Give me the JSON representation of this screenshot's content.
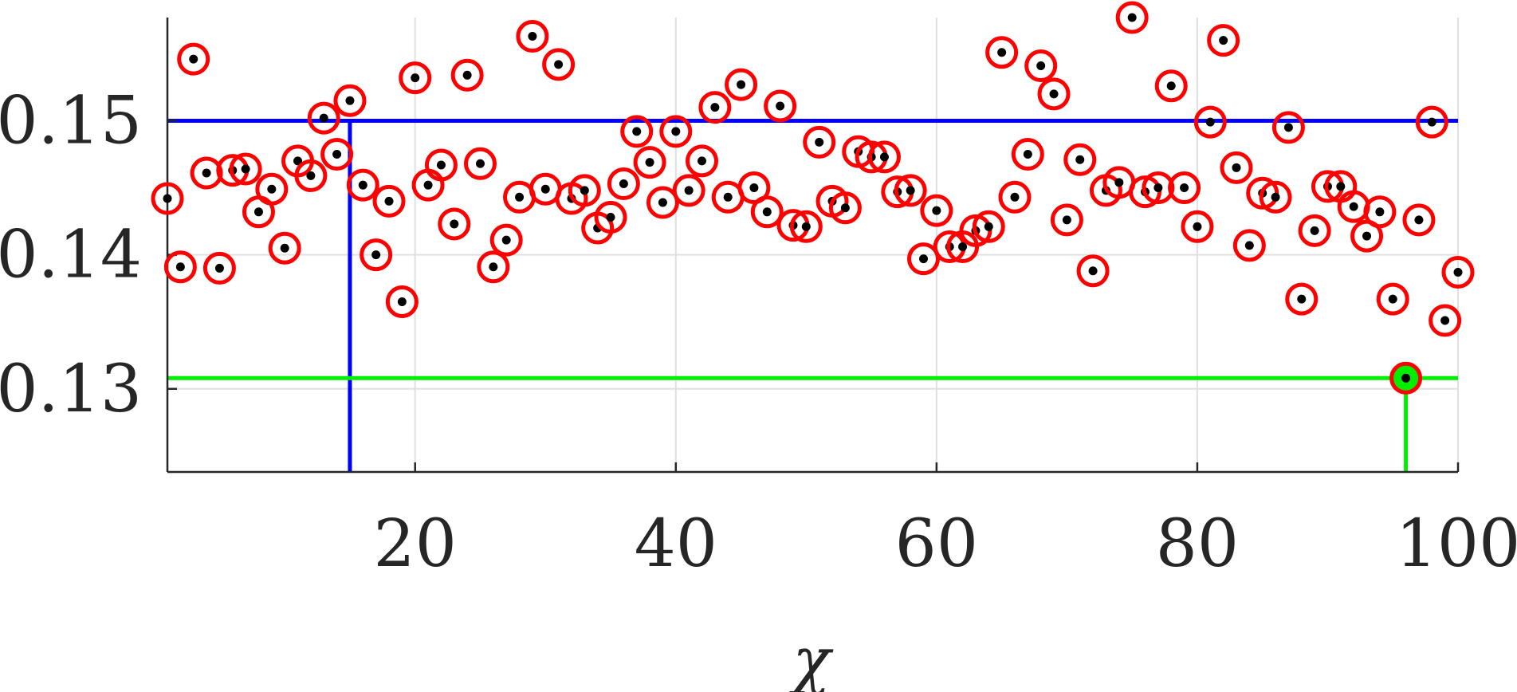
{
  "chart_data": {
    "type": "scatter",
    "title": "",
    "xlabel": "χ",
    "ylabel": "",
    "xlim": [
      1,
      100
    ],
    "ylim": [
      0.1238,
      0.1577
    ],
    "xticks": [
      20,
      40,
      60,
      80,
      100
    ],
    "yticks": [
      0.13,
      0.14,
      0.15
    ],
    "xtick_labels": [
      "20",
      "40",
      "60",
      "80",
      "100"
    ],
    "ytick_labels": [
      "0.13",
      "0.14",
      "0.15"
    ],
    "grid": true,
    "x": [
      1,
      2,
      3,
      4,
      5,
      6,
      7,
      8,
      9,
      10,
      11,
      12,
      13,
      14,
      15,
      16,
      17,
      18,
      19,
      20,
      21,
      22,
      23,
      24,
      25,
      26,
      27,
      28,
      29,
      30,
      31,
      32,
      33,
      34,
      35,
      36,
      37,
      38,
      39,
      40,
      41,
      42,
      43,
      44,
      45,
      46,
      47,
      48,
      49,
      50,
      51,
      52,
      53,
      54,
      55,
      56,
      57,
      58,
      59,
      60,
      61,
      62,
      63,
      64,
      65,
      66,
      67,
      68,
      69,
      70,
      71,
      72,
      73,
      74,
      75,
      76,
      77,
      78,
      79,
      80,
      81,
      82,
      83,
      84,
      85,
      86,
      87,
      88,
      89,
      90,
      91,
      92,
      93,
      94,
      95,
      96,
      97,
      98,
      99,
      100
    ],
    "y": [
      0.1442,
      0.1391,
      0.1546,
      0.1461,
      0.139,
      0.1463,
      0.1464,
      0.1432,
      0.1449,
      0.1405,
      0.147,
      0.1459,
      0.1502,
      0.1475,
      0.1515,
      0.1452,
      0.14,
      0.144,
      0.1365,
      0.1532,
      0.1452,
      0.1467,
      0.1423,
      0.1534,
      0.1468,
      0.1391,
      0.1411,
      0.1443,
      0.1563,
      0.1449,
      0.1542,
      0.1442,
      0.1448,
      0.142,
      0.1428,
      0.1453,
      0.1492,
      0.1469,
      0.1439,
      0.1492,
      0.1448,
      0.147,
      0.151,
      0.1443,
      0.1527,
      0.145,
      0.1432,
      0.1511,
      0.1422,
      0.1421,
      0.1484,
      0.144,
      0.1435,
      0.1477,
      0.1473,
      0.1473,
      0.1447,
      0.1448,
      0.1397,
      0.1433,
      0.1406,
      0.1406,
      0.1418,
      0.1421,
      0.1551,
      0.1443,
      0.1475,
      0.1541,
      0.152,
      0.1426,
      0.1471,
      0.1388,
      0.1448,
      0.1454,
      0.1577,
      0.1447,
      0.145,
      0.1526,
      0.145,
      0.1421,
      0.1499,
      0.156,
      0.1465,
      0.1407,
      0.1446,
      0.1443,
      0.1495,
      0.1367,
      0.1418,
      0.1451,
      0.1451,
      0.1436,
      0.1414,
      0.1432,
      0.1367,
      0.1308,
      0.1426,
      0.1499,
      0.1351,
      0.1387
    ],
    "threshold_high": 0.15,
    "threshold_low": 0.1308,
    "marker_high_x": 15,
    "marker_low_x": 96,
    "colors": {
      "point": "#000000",
      "ring": "#ff0000",
      "high_line": "#0000ff",
      "low_line": "#00ee00",
      "grid": "#e0e0e0",
      "axis": "#262626",
      "text": "#262626"
    }
  }
}
